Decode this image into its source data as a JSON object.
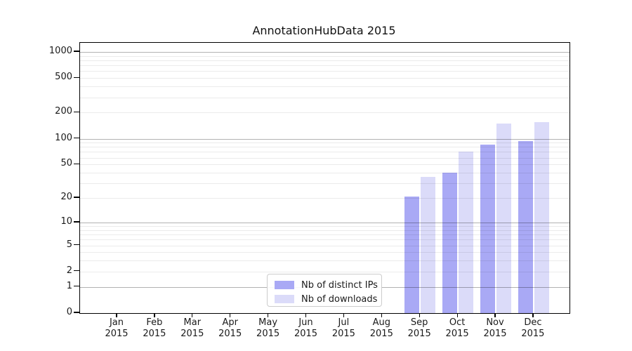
{
  "title": "AnnotationHubData 2015",
  "chart_data": {
    "type": "bar",
    "title": "AnnotationHubData 2015",
    "x_axis": {
      "months": [
        "Jan",
        "Feb",
        "Mar",
        "Apr",
        "May",
        "Jun",
        "Jul",
        "Aug",
        "Sep",
        "Oct",
        "Nov",
        "Dec"
      ],
      "year": "2015"
    },
    "y_axis": {
      "scale": "log1p",
      "ticks": [
        0,
        1,
        2,
        5,
        10,
        20,
        50,
        100,
        200,
        500,
        1000
      ],
      "minor_gridlines": [
        2,
        3,
        4,
        5,
        6,
        7,
        8,
        9,
        20,
        30,
        40,
        50,
        60,
        70,
        80,
        90,
        200,
        300,
        400,
        500,
        600,
        700,
        800,
        900
      ],
      "major_gridlines": [
        1,
        10,
        100,
        1000
      ],
      "ylim_top": 1270
    },
    "series": [
      {
        "name": "Nb of distinct IPs",
        "color": "#a9a9f5",
        "values": [
          0,
          0,
          0,
          0,
          0,
          0,
          0,
          0,
          21,
          40,
          85,
          94
        ]
      },
      {
        "name": "Nb of downloads",
        "color": "#dbdbf9",
        "values": [
          0,
          0,
          0,
          0,
          0,
          0,
          0,
          0,
          36,
          70,
          150,
          155
        ]
      }
    ],
    "legend_position": "lower center",
    "grid": true
  },
  "colors": {
    "background": "#ffffff",
    "spine": "#000000",
    "grid_major": "rgba(0,0,0,0.30)",
    "grid_minor": "rgba(0,0,0,0.08)",
    "text": "#1a1a1a",
    "legend_border": "#cccccc"
  }
}
